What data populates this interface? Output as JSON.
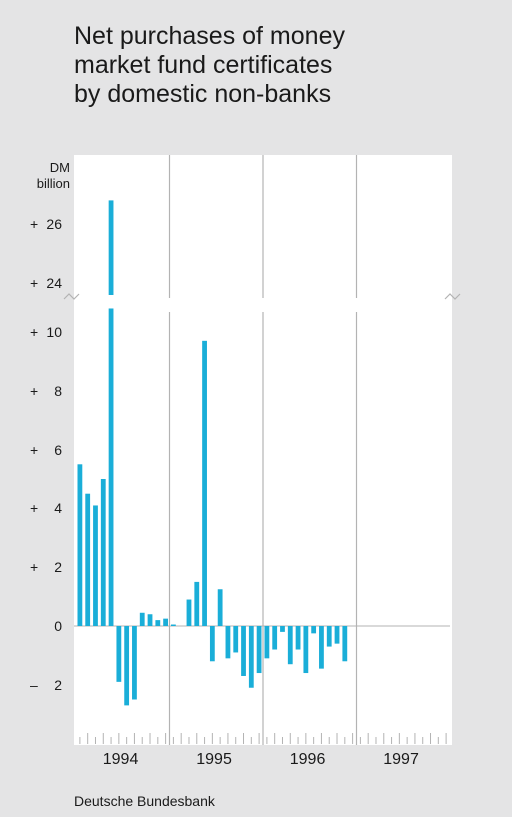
{
  "title": [
    "Net purchases of money",
    "market fund certificates",
    "by domestic non-banks"
  ],
  "unit": [
    "DM",
    "billion"
  ],
  "source": "Deutsche Bundesbank",
  "colors": {
    "bar": "#1aaed8",
    "background": "#e4e4e5",
    "plot": "#ffffff",
    "grid": "#b3b3b3"
  },
  "y_ticks": [
    {
      "sign": "+",
      "num": "26",
      "v": 26
    },
    {
      "sign": "+",
      "num": "24",
      "v": 24
    },
    {
      "sign": "+",
      "num": "10",
      "v": 10
    },
    {
      "sign": "+",
      "num": "8",
      "v": 8
    },
    {
      "sign": "+",
      "num": "6",
      "v": 6
    },
    {
      "sign": "+",
      "num": "4",
      "v": 4
    },
    {
      "sign": "+",
      "num": "2",
      "v": 2
    },
    {
      "sign": "",
      "num": "0",
      "v": 0
    },
    {
      "sign": "–",
      "num": "2",
      "v": -2
    }
  ],
  "x_labels": [
    "1994",
    "1995",
    "1996",
    "1997"
  ],
  "chart_data": {
    "type": "bar",
    "x_start": "1994-01",
    "x_end": "1997-12",
    "frequency": "monthly",
    "axis_break": {
      "from": 11,
      "to": 22.5
    },
    "ylim": [
      -4,
      27.5
    ],
    "grid": "vertical lines at year boundaries",
    "values": [
      5.5,
      4.5,
      4.1,
      5.0,
      26.8,
      -1.9,
      -2.7,
      -2.5,
      0.45,
      0.4,
      0.2,
      0.25,
      0.05,
      null,
      0.9,
      1.5,
      9.7,
      -1.2,
      1.25,
      -1.1,
      -0.9,
      -1.7,
      -2.1,
      -1.6,
      -1.1,
      -0.8,
      -0.2,
      -1.3,
      -0.8,
      -1.6,
      -0.25,
      -1.45,
      -0.7,
      -0.6,
      -1.2,
      null,
      null,
      null,
      null,
      null,
      null,
      null,
      null,
      null,
      null,
      null,
      null,
      null
    ]
  }
}
